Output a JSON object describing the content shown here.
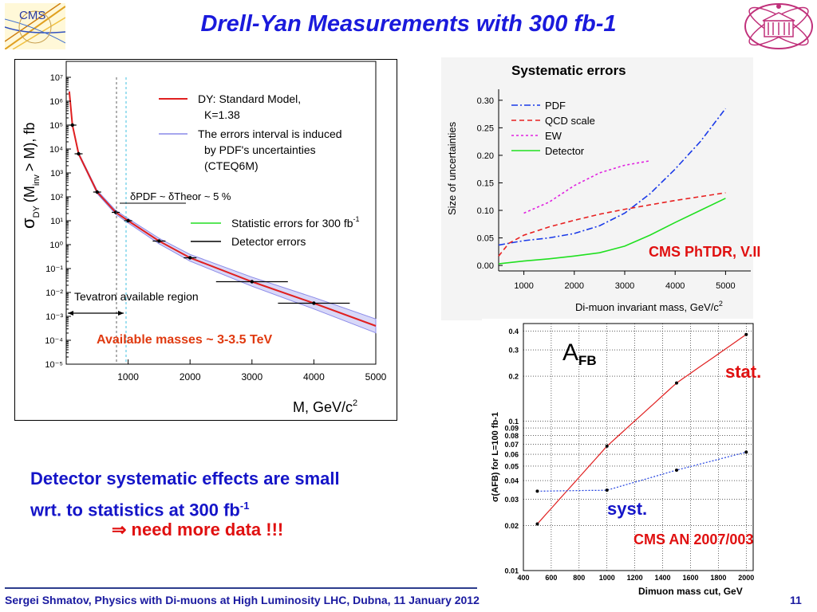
{
  "slide": {
    "title": "Drell-Yan Measurements with 300 fb-1",
    "logo_left_text": "CMS",
    "body_line1": "Detector systematic effects are small",
    "body_line2_main": "wrt. to statistics at 300 fb",
    "body_line2_sup": "-1",
    "conclusion": "⇒ need more data !!!",
    "footer": "Sergei Shmatov, Physics with Di-muons at High Luminosity LHC, Dubna, 11 January 2012",
    "page_number": "11"
  },
  "chart_data": [
    {
      "type": "line",
      "x_label": "M, GeV/c",
      "x_label_sup": "2",
      "y_label_main": "σ",
      "y_label_sub": "DY",
      "y_label_rest": "(M",
      "y_label_sub2": "inv",
      "y_label_end": "> M), fb",
      "x_ticks": [
        "1000",
        "2000",
        "3000",
        "4000",
        "5000"
      ],
      "y_ticks": [
        "10⁷",
        "10⁶",
        "10⁵",
        "10⁴",
        "10³",
        "10²",
        "10¹",
        "10⁰",
        "10⁻¹",
        "10⁻²",
        "10⁻³",
        "10⁻⁴",
        "10⁻⁵"
      ],
      "xlim": [
        0,
        5000
      ],
      "ylim_log10": [
        -5,
        7
      ],
      "legend": {
        "sm_line1": "DY: Standard Model,",
        "sm_line2": "K=1.38",
        "band_line1": "The errors interval is induced",
        "band_line2": "by PDF's uncertainties",
        "band_line3": "(CTEQ6M)",
        "stat": "Statistic errors for 300 fb",
        "stat_sup": "-1",
        "det": "Detector errors"
      },
      "annotation_delta": "δPDF ~ δTheor ~ 5 %",
      "annotation_tevatron": "Tevatron available region",
      "annotation_masses": "Available masses ~ 3-3.5 TeV",
      "series": [
        {
          "name": "DY: Standard Model, K=1.38",
          "x": [
            50,
            100,
            200,
            500,
            800,
            1000,
            1500,
            2000,
            3000,
            4000,
            5000
          ],
          "log10_y": [
            6.4,
            5.0,
            3.8,
            2.2,
            1.35,
            1.0,
            0.15,
            -0.55,
            -1.55,
            -2.45,
            -3.4
          ]
        }
      ],
      "points": {
        "x": [
          100,
          200,
          500,
          800,
          1000,
          1500,
          2000,
          3000,
          4000
        ],
        "log10_y": [
          5.0,
          3.8,
          2.2,
          1.35,
          1.0,
          0.15,
          -0.55,
          -1.55,
          -2.45
        ]
      },
      "colors": {
        "sm": "#e02020",
        "band": "#8a8ae8",
        "stat": "#22dd22",
        "det": "#000000"
      }
    },
    {
      "type": "line",
      "title": "Systematic errors",
      "x_label": "Di-muon invariant mass, GeV/c",
      "x_label_sup": "2",
      "y_label": "Size of uncertainties",
      "x_ticks": [
        "1000",
        "2000",
        "3000",
        "4000",
        "5000"
      ],
      "y_ticks": [
        "0.00",
        "0.05",
        "0.10",
        "0.15",
        "0.20",
        "0.25",
        "0.30"
      ],
      "xlim": [
        500,
        5500
      ],
      "ylim": [
        -0.01,
        0.32
      ],
      "legend": [
        "PDF",
        "QCD scale",
        "EW",
        "Detector"
      ],
      "series": [
        {
          "name": "PDF",
          "color": "#1a3ae8",
          "x": [
            500,
            1000,
            1500,
            2000,
            2500,
            3000,
            3500,
            4000,
            4500,
            5000
          ],
          "values": [
            0.037,
            0.045,
            0.05,
            0.058,
            0.072,
            0.095,
            0.13,
            0.175,
            0.225,
            0.285
          ]
        },
        {
          "name": "QCD scale",
          "color": "#e82020",
          "x": [
            500,
            700,
            1000,
            1500,
            2000,
            2500,
            3000,
            3500,
            4000,
            4500,
            5000
          ],
          "values": [
            0.017,
            0.04,
            0.055,
            0.07,
            0.082,
            0.093,
            0.102,
            0.11,
            0.118,
            0.125,
            0.132
          ]
        },
        {
          "name": "EW",
          "color": "#e020e0",
          "x": [
            1000,
            1500,
            2000,
            2500,
            3000,
            3500
          ],
          "values": [
            0.095,
            0.115,
            0.145,
            0.168,
            0.182,
            0.19
          ]
        },
        {
          "name": "Detector",
          "color": "#20e020",
          "x": [
            500,
            1000,
            1500,
            2000,
            2500,
            3000,
            3500,
            4000,
            4500,
            5000
          ],
          "values": [
            0.003,
            0.008,
            0.012,
            0.017,
            0.023,
            0.035,
            0.055,
            0.078,
            0.1,
            0.122
          ]
        }
      ],
      "source": "CMS PhTDR, V.II"
    },
    {
      "type": "line",
      "x_label": "Dimuon mass cut, GeV",
      "y_label": "σ(AFB) for L=100 fb-1",
      "x_ticks": [
        "400",
        "600",
        "800",
        "1000",
        "1200",
        "1400",
        "1600",
        "1800",
        "2000"
      ],
      "y_ticks": [
        "0.01",
        "0.02",
        "0.03",
        "0.04",
        "0.05",
        "0.06",
        "0.07",
        "0.08",
        "0.09",
        "0.1",
        "0.2",
        "0.3",
        "0.4"
      ],
      "xlim": [
        400,
        2050
      ],
      "ylim_log": [
        0.01,
        0.45
      ],
      "label_afb": "A",
      "label_afb_sub": "FB",
      "label_stat": "stat.",
      "label_syst": "syst.",
      "series": [
        {
          "name": "stat.",
          "color": "#e02020",
          "x": [
            500,
            1000,
            1500,
            2000
          ],
          "values": [
            0.0205,
            0.068,
            0.18,
            0.38
          ]
        },
        {
          "name": "syst.",
          "color": "#2040e0",
          "x": [
            500,
            1000,
            1500,
            2000
          ],
          "values": [
            0.034,
            0.0345,
            0.047,
            0.062
          ]
        }
      ],
      "source": "CMS AN 2007/003"
    }
  ]
}
